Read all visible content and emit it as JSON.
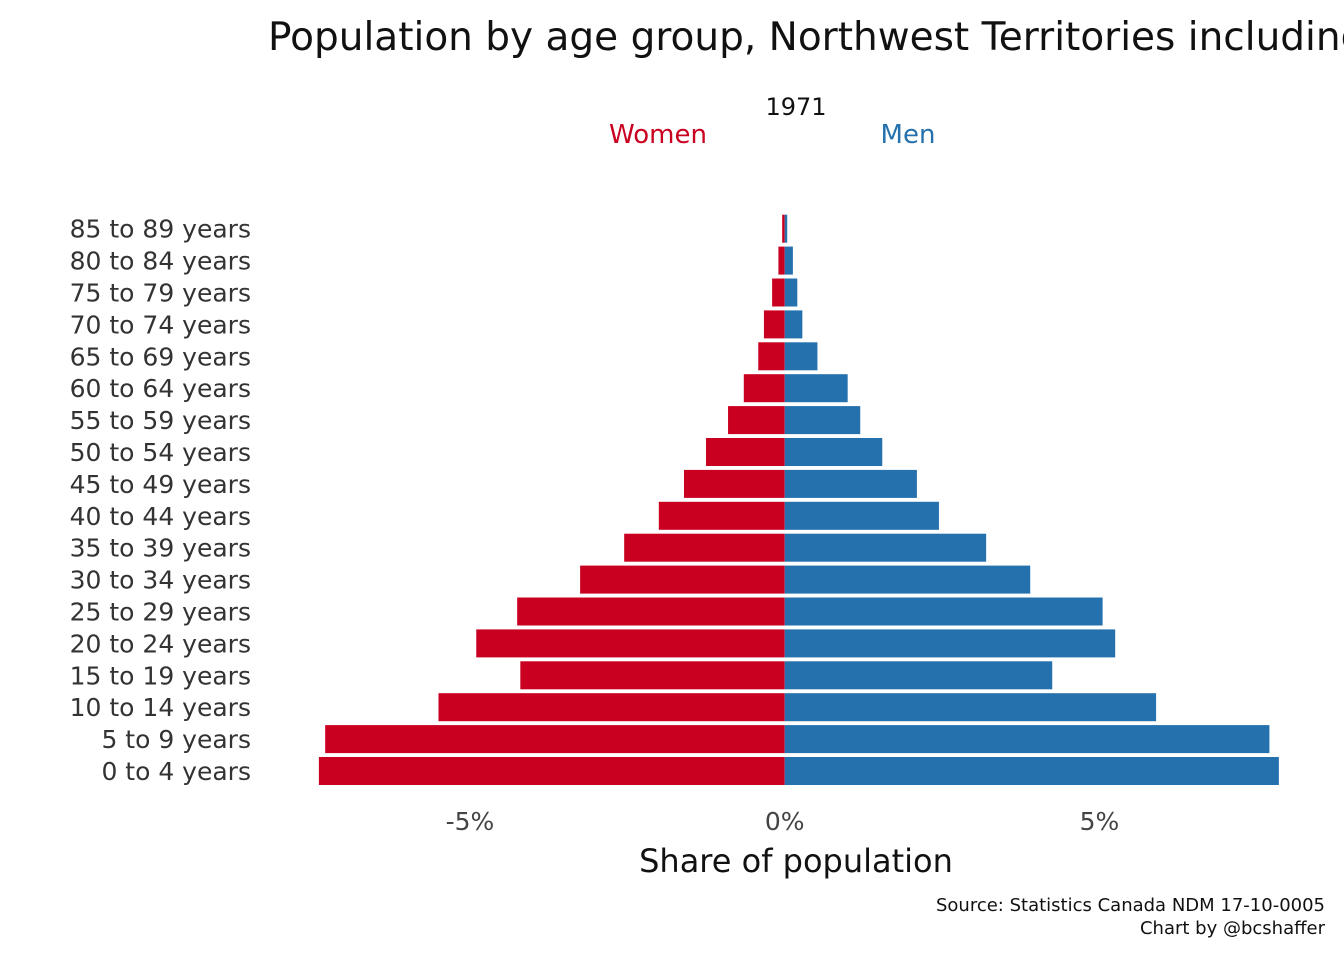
{
  "chart_data": {
    "type": "bar",
    "orientation": "horizontal",
    "title": "Population by age group, Northwest Territories including Nunavut",
    "subtitle": "1971",
    "xlabel": "Share of population",
    "ylabel": "",
    "xlim": [
      -7.7,
      7.9
    ],
    "xticks": [
      -5,
      0,
      5
    ],
    "xtick_labels": [
      "-5%",
      "0%",
      "5%"
    ],
    "categories": [
      "0 to 4 years",
      "5 to 9 years",
      "10 to 14 years",
      "15 to 19 years",
      "20 to 24 years",
      "25 to 29 years",
      "30 to 34 years",
      "35 to 39 years",
      "40 to 44 years",
      "45 to 49 years",
      "50 to 54 years",
      "55 to 59 years",
      "60 to 64 years",
      "65 to 69 years",
      "70 to 74 years",
      "75 to 79 years",
      "80 to 84 years",
      "85 to 89 years"
    ],
    "series": [
      {
        "name": "Women",
        "color": "#ca0020",
        "values": [
          -7.4,
          -7.3,
          -5.5,
          -4.2,
          -4.9,
          -4.25,
          -3.25,
          -2.55,
          -2.0,
          -1.6,
          -1.25,
          -0.9,
          -0.65,
          -0.42,
          -0.33,
          -0.2,
          -0.1,
          -0.04
        ]
      },
      {
        "name": "Men",
        "color": "#2471ae",
        "values": [
          7.85,
          7.7,
          5.9,
          4.25,
          5.25,
          5.05,
          3.9,
          3.2,
          2.45,
          2.1,
          1.55,
          1.2,
          1.0,
          0.52,
          0.28,
          0.2,
          0.13,
          0.04
        ]
      }
    ],
    "grid": false,
    "legend_placement": "top",
    "caption_lines": [
      "Source: Statistics Canada NDM 17-10-0005",
      "Chart by @bcshaffer"
    ]
  }
}
